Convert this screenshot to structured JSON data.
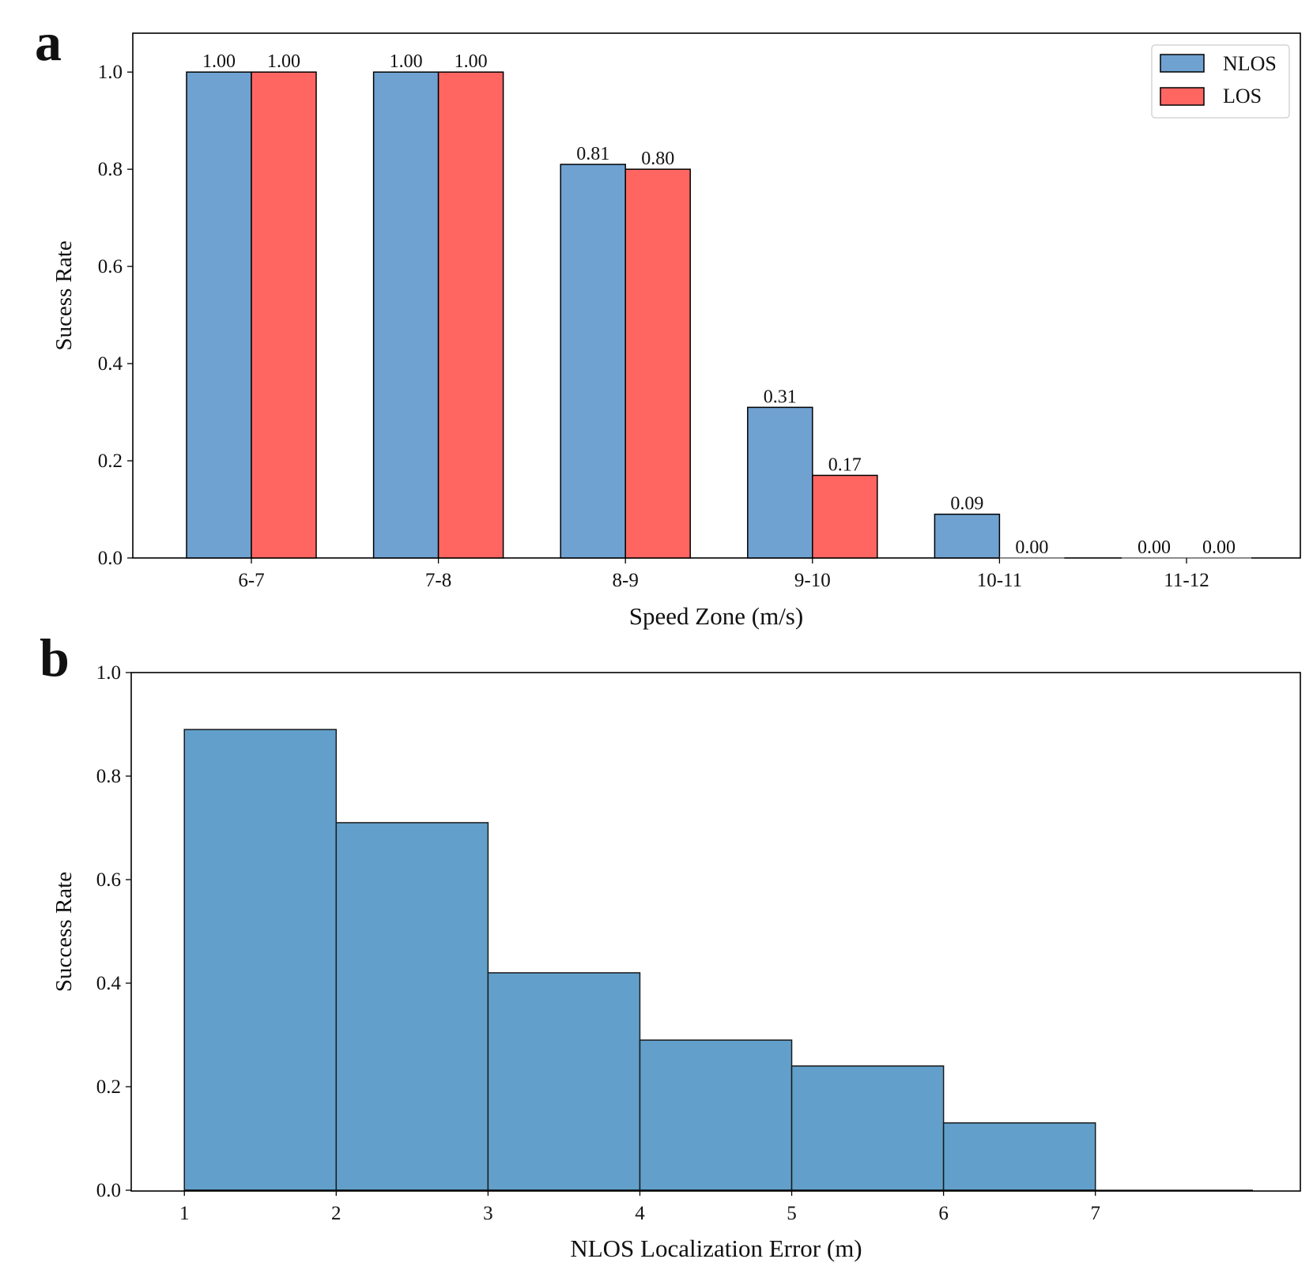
{
  "panels": [
    {
      "label": "a"
    },
    {
      "label": "b"
    }
  ],
  "chart_data": [
    {
      "type": "bar",
      "categories": [
        "6-7",
        "7-8",
        "8-9",
        "9-10",
        "10-11",
        "11-12"
      ],
      "series": [
        {
          "name": "NLOS",
          "color": "#6fa2d1",
          "values": [
            1.0,
            1.0,
            0.81,
            0.31,
            0.09,
            0.0
          ],
          "labels": [
            "1.00",
            "1.00",
            "0.81",
            "0.31",
            "0.09",
            "0.00"
          ]
        },
        {
          "name": "LOS",
          "color": "#ff6662",
          "values": [
            1.0,
            1.0,
            0.8,
            0.17,
            0.0,
            0.0
          ],
          "labels": [
            "1.00",
            "1.00",
            "0.80",
            "0.17",
            "0.00",
            "0.00"
          ]
        }
      ],
      "xlabel": "Speed Zone (m/s)",
      "ylabel": "Sucess Rate",
      "ylim": [
        0,
        1.08
      ],
      "yticks": [
        "0.0",
        "0.2",
        "0.4",
        "0.6",
        "0.8",
        "1.0"
      ],
      "legend": "top-right",
      "grid": false
    },
    {
      "type": "bar",
      "bins": [
        {
          "from": 1,
          "to": 2,
          "value": 0.89
        },
        {
          "from": 2,
          "to": 3,
          "value": 0.71
        },
        {
          "from": 3,
          "to": 4,
          "value": 0.42
        },
        {
          "from": 4,
          "to": 5,
          "value": 0.29
        },
        {
          "from": 5,
          "to": 6,
          "value": 0.24
        },
        {
          "from": 6,
          "to": 7,
          "value": 0.13
        }
      ],
      "color": "#62a0cb",
      "xlabel": "NLOS Localization Error (m)",
      "ylabel": "Success Rate",
      "xlim": [
        0.65,
        8.35
      ],
      "ylim": [
        0,
        1.0
      ],
      "xticks": [
        "1",
        "2",
        "3",
        "4",
        "5",
        "6",
        "7"
      ],
      "yticks": [
        "0.0",
        "0.2",
        "0.4",
        "0.6",
        "0.8",
        "1.0"
      ],
      "grid": false
    }
  ]
}
